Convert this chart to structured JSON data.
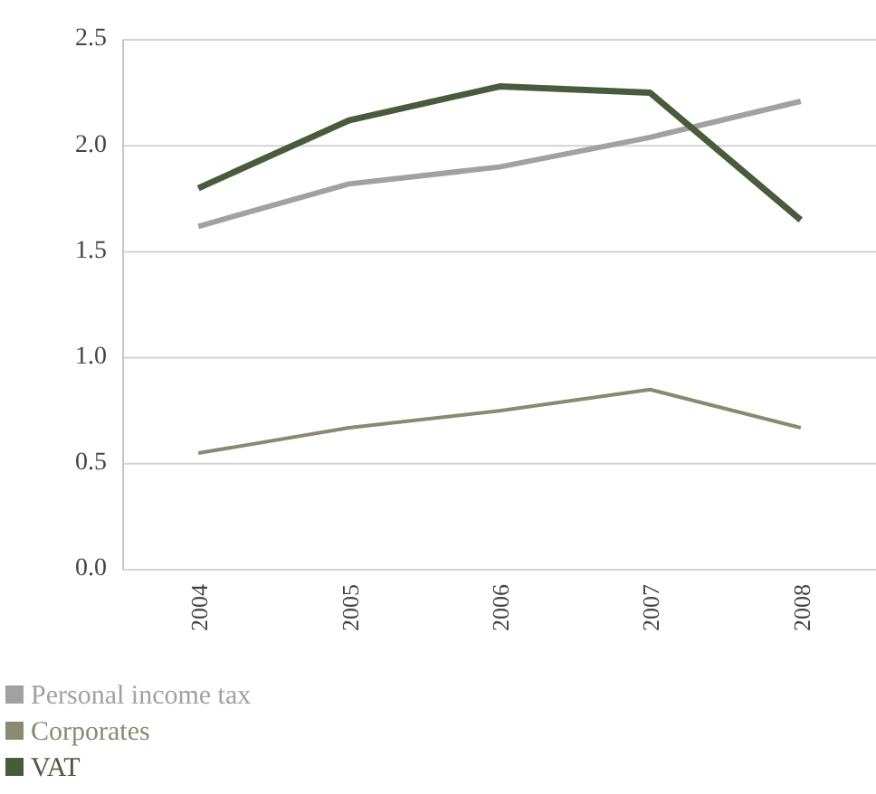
{
  "chart_data": {
    "type": "line",
    "categories": [
      "2004",
      "2005",
      "2006",
      "2007",
      "2008"
    ],
    "series": [
      {
        "name": "Personal income tax",
        "color": "#a1a1a4",
        "values": [
          1.62,
          1.82,
          1.9,
          2.04,
          2.21
        ]
      },
      {
        "name": "Corporates",
        "color": "#8a8a72",
        "values": [
          0.55,
          0.67,
          0.75,
          0.85,
          0.67
        ]
      },
      {
        "name": "VAT",
        "color": "#485c3c",
        "values": [
          1.8,
          2.12,
          2.28,
          2.25,
          1.65
        ]
      }
    ],
    "ylim": [
      0,
      2.5
    ],
    "yticks": [
      {
        "value": 0,
        "label": "0.0"
      },
      {
        "value": 0.5,
        "label": "0.5"
      },
      {
        "value": 1,
        "label": "1.0"
      },
      {
        "value": 1.5,
        "label": "1.5"
      },
      {
        "value": 2,
        "label": "2.0"
      },
      {
        "value": 2.5,
        "label": "2.5"
      }
    ],
    "grid": "y",
    "legend": "bottom left",
    "marker": "none",
    "line_style": "solid"
  }
}
